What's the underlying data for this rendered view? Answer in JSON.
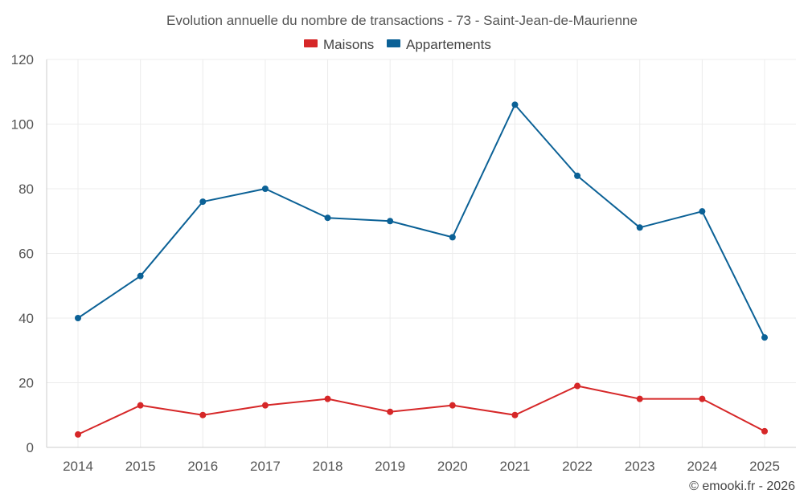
{
  "chart_data": {
    "type": "line",
    "title": "Evolution annuelle du nombre de transactions - 73 - Saint-Jean-de-Maurienne",
    "categories": [
      "2014",
      "2015",
      "2016",
      "2017",
      "2018",
      "2019",
      "2020",
      "2021",
      "2022",
      "2023",
      "2024",
      "2025"
    ],
    "series": [
      {
        "name": "Maisons",
        "color": "#d62728",
        "values": [
          4,
          13,
          10,
          13,
          15,
          11,
          13,
          10,
          19,
          15,
          15,
          5
        ]
      },
      {
        "name": "Appartements",
        "color": "#0b6196",
        "values": [
          40,
          53,
          76,
          80,
          71,
          70,
          65,
          106,
          84,
          68,
          73,
          34
        ]
      }
    ],
    "yticks": [
      0,
      20,
      40,
      60,
      80,
      100,
      120
    ],
    "ylim": [
      0,
      120
    ],
    "xlabel": "",
    "ylabel": "",
    "grid": true,
    "legend_position": "top-center"
  },
  "credit": "© emooki.fr - 2026"
}
